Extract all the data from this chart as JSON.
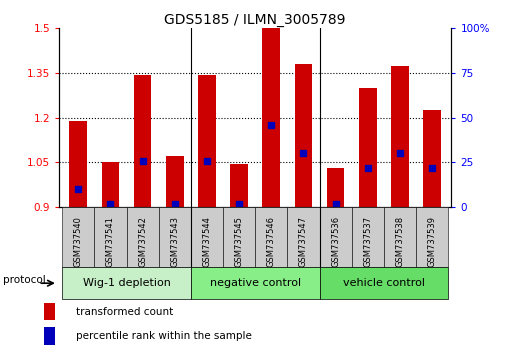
{
  "title": "GDS5185 / ILMN_3005789",
  "samples": [
    "GSM737540",
    "GSM737541",
    "GSM737542",
    "GSM737543",
    "GSM737544",
    "GSM737545",
    "GSM737546",
    "GSM737547",
    "GSM737536",
    "GSM737537",
    "GSM737538",
    "GSM737539"
  ],
  "transformed_count": [
    1.19,
    1.05,
    1.345,
    1.07,
    1.345,
    1.045,
    1.5,
    1.38,
    1.03,
    1.3,
    1.375,
    1.225
  ],
  "percentile_rank": [
    10,
    2,
    26,
    2,
    26,
    2,
    46,
    30,
    2,
    22,
    30,
    22
  ],
  "ymin": 0.9,
  "ymax": 1.5,
  "yticks": [
    0.9,
    1.05,
    1.2,
    1.35,
    1.5
  ],
  "right_yticks": [
    0,
    25,
    50,
    75,
    100
  ],
  "bar_color": "#cc0000",
  "dot_color": "#0000bb",
  "bar_width": 0.55,
  "groups": [
    {
      "label": "Wig-1 depletion",
      "start": 0,
      "end": 4,
      "color": "#c8f0c8"
    },
    {
      "label": "negative control",
      "start": 4,
      "end": 8,
      "color": "#88ee88"
    },
    {
      "label": "vehicle control",
      "start": 8,
      "end": 12,
      "color": "#66dd66"
    }
  ],
  "protocol_label": "protocol",
  "legend_items": [
    {
      "label": "transformed count",
      "color": "#cc0000"
    },
    {
      "label": "percentile rank within the sample",
      "color": "#0000bb"
    }
  ],
  "title_fontsize": 10,
  "tick_fontsize": 7.5,
  "sample_fontsize": 6,
  "group_fontsize": 8,
  "legend_fontsize": 7.5
}
